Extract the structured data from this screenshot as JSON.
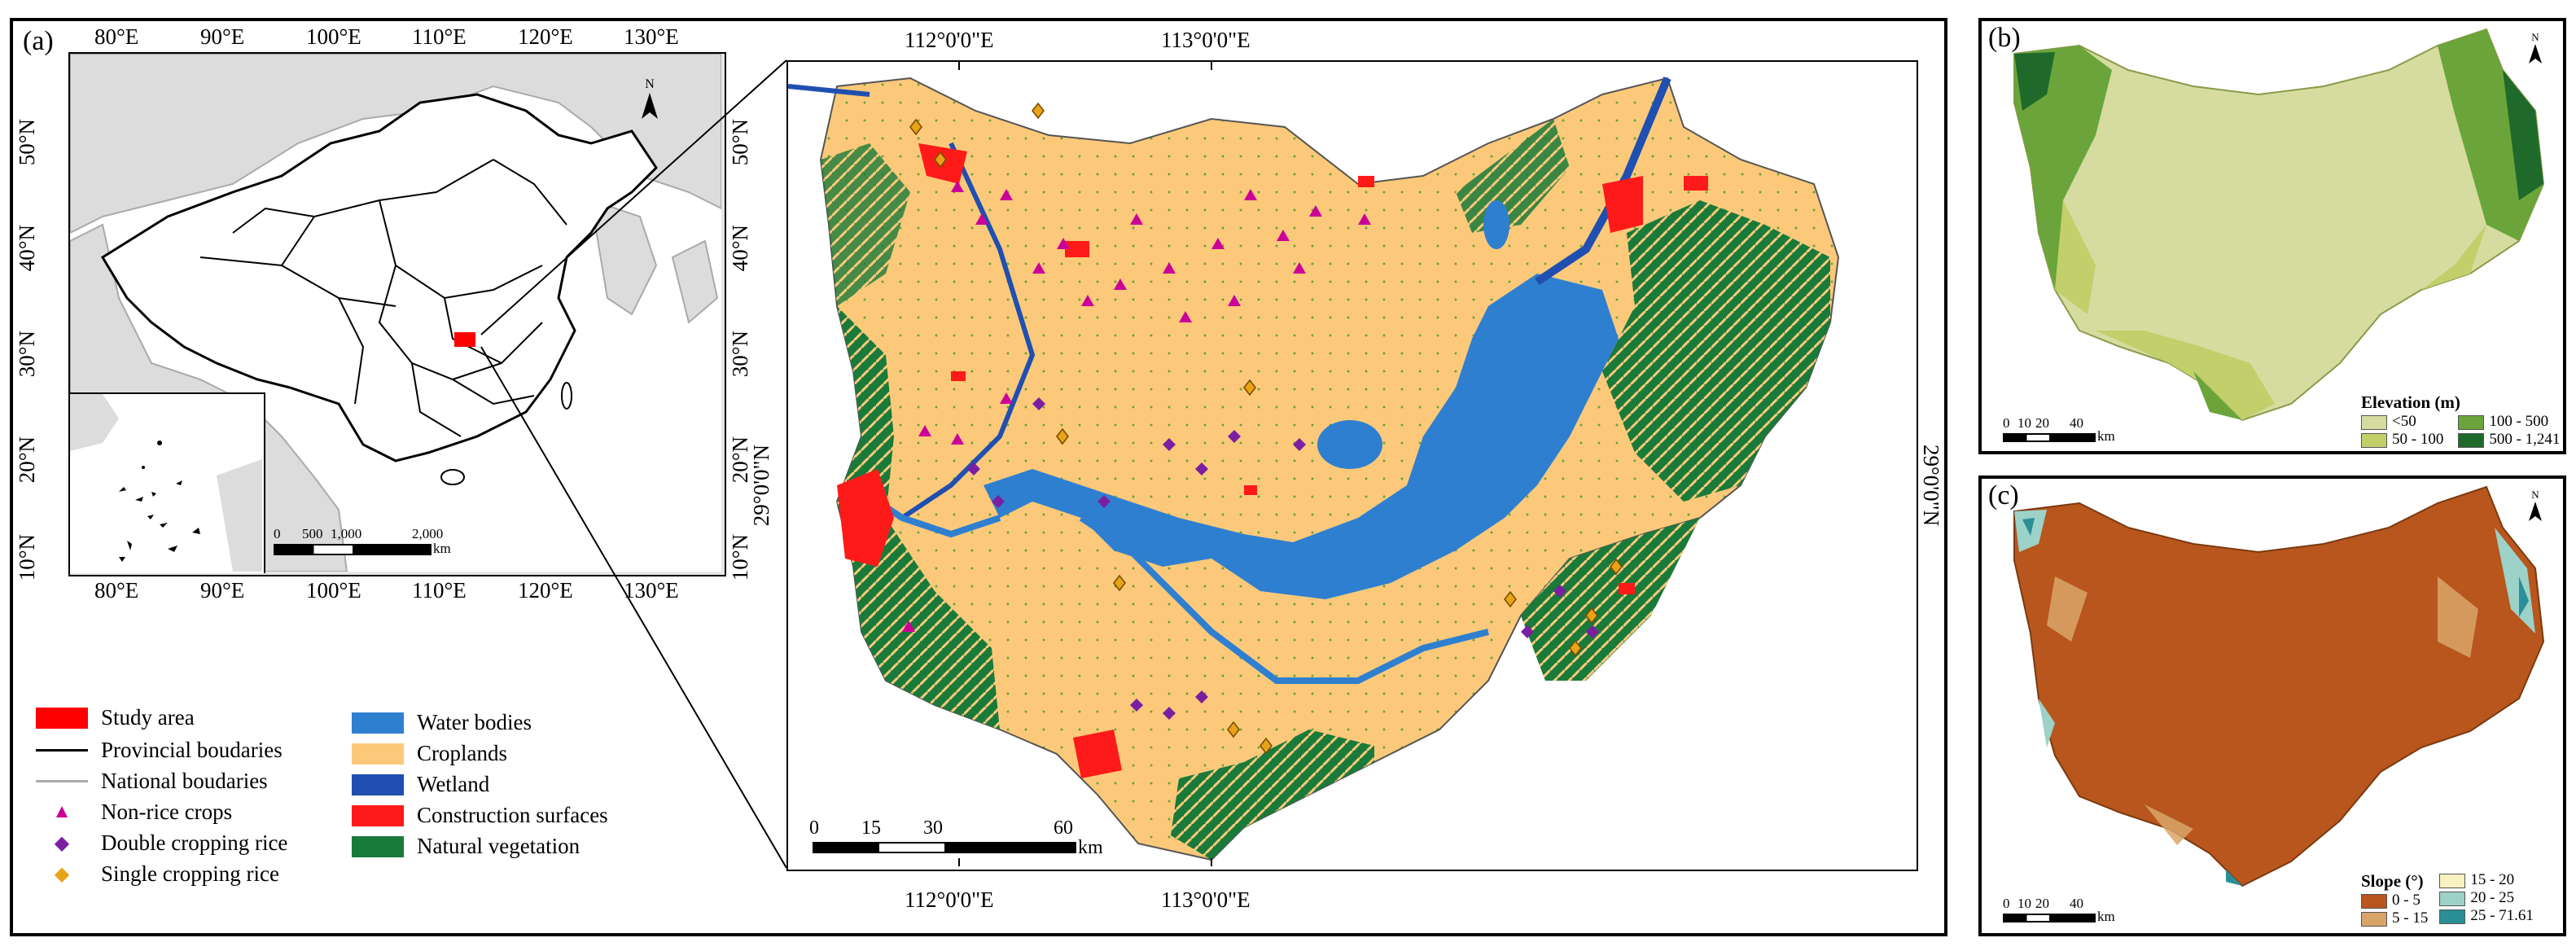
{
  "panel_a": {
    "label": "(a)",
    "inset_map": {
      "lon_labels": [
        "80°E",
        "90°E",
        "100°E",
        "110°E",
        "120°E",
        "130°E"
      ],
      "lat_labels": [
        "50°N",
        "40°N",
        "30°N",
        "20°N",
        "10°N"
      ],
      "scale_labels": [
        "0",
        "500",
        "1,000",
        "2,000"
      ],
      "scale_unit": "km"
    },
    "main_map": {
      "top_lon_labels": [
        "112°0'0\"E",
        "113°0'0\"E"
      ],
      "bottom_lon_labels": [
        "112°0'0\"E",
        "113°0'0\"E"
      ],
      "lat_label": "29°0'0\"N",
      "scale_labels": [
        "0",
        "15",
        "30",
        "60"
      ],
      "scale_unit": "km"
    },
    "legend": {
      "col1": [
        {
          "label": "Study area",
          "kind": "swatch",
          "color": "#ff0000"
        },
        {
          "label": "Provincial boudaries",
          "kind": "line",
          "color": "#000000"
        },
        {
          "label": "National boudaries",
          "kind": "line",
          "color": "#aaaaaa"
        },
        {
          "label": "Non-rice crops",
          "kind": "triangle",
          "color": "#cc0099"
        },
        {
          "label": "Double cropping rice",
          "kind": "diamond",
          "color": "#7a1fa2"
        },
        {
          "label": "Single cropping rice",
          "kind": "diamond",
          "color": "#e8a317"
        }
      ],
      "col2": [
        {
          "label": "Water bodies",
          "color": "#2f7fd0"
        },
        {
          "label": "Croplands",
          "color": "#fcc97a"
        },
        {
          "label": "Wetland",
          "color": "#1f4fb0"
        },
        {
          "label": "Construction surfaces",
          "color": "#ff1a1a"
        },
        {
          "label": "Natural vegetation",
          "color": "#1a7a3a"
        }
      ]
    }
  },
  "panel_b": {
    "label": "(b)",
    "legend_title": "Elevation (m)",
    "classes": [
      {
        "label": "<50",
        "color": "#d6dca0"
      },
      {
        "label": "50 - 100",
        "color": "#c2cf6a"
      },
      {
        "label": "100 - 500",
        "color": "#6aa43a"
      },
      {
        "label": "500 - 1,241",
        "color": "#1f6a2a"
      }
    ],
    "scale_labels": [
      "0",
      "10",
      "20",
      "40"
    ],
    "scale_unit": "km"
  },
  "panel_c": {
    "label": "(c)",
    "legend_title": "Slope (°)",
    "classes": [
      {
        "label": "0 - 5",
        "color": "#b8561e"
      },
      {
        "label": "5 - 15",
        "color": "#d9a46a"
      },
      {
        "label": "15 - 20",
        "color": "#f7f2c0"
      },
      {
        "label": "20 - 25",
        "color": "#9cd2c8"
      },
      {
        "label": "25 - 71.61",
        "color": "#2a8f96"
      }
    ],
    "scale_labels": [
      "0",
      "10",
      "20",
      "40"
    ],
    "scale_unit": "km"
  },
  "north_arrow": "N"
}
